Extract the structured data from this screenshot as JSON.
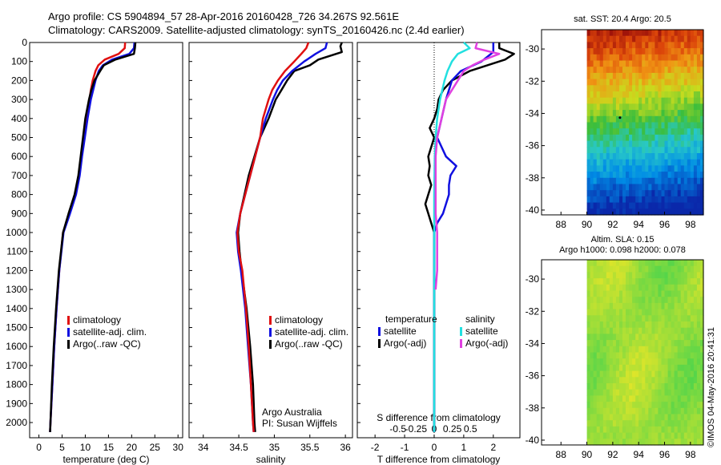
{
  "header": {
    "line1": "Argo profile: CS 5904894_57 28-Apr-2016 20160428_726 34.267S 92.561E",
    "line2": "Climatology: CARS2009. Satellite-adjusted climatology: synTS_20160426.nc (2.4d earlier)"
  },
  "colors": {
    "climatology": "#e01010",
    "satellite": "#1010e0",
    "argo": "#000000",
    "salinity_satellite": "#22e0e0",
    "salinity_argo": "#e040e0"
  },
  "chart_data": [
    {
      "type": "line",
      "panel": "temperature",
      "xlabel": "temperature (deg C)",
      "ylabel": "",
      "xlim": [
        -2,
        31
      ],
      "ylim": [
        2080,
        0
      ],
      "xticks": [
        "0",
        "5",
        "10",
        "15",
        "20",
        "25",
        "30"
      ],
      "yticks": [
        "0",
        "100",
        "200",
        "300",
        "400",
        "500",
        "600",
        "700",
        "800",
        "900",
        "1000",
        "1100",
        "1200",
        "1300",
        "1400",
        "1500",
        "1600",
        "1700",
        "1800",
        "1900",
        "2000"
      ],
      "legend": [
        "climatology",
        "satellite-adj. clim.",
        "Argo(..raw -QC)"
      ],
      "series": [
        {
          "name": "climatology",
          "depth": [
            0,
            30,
            60,
            90,
            120,
            150,
            200,
            250,
            300,
            400,
            500,
            600,
            700,
            800,
            900,
            1000,
            1200,
            1400,
            1600,
            1800,
            2000,
            2050
          ],
          "values": [
            18.6,
            18.5,
            17.2,
            14.2,
            12.8,
            12.2,
            11.6,
            11.2,
            10.9,
            10.3,
            9.7,
            9.2,
            8.7,
            7.9,
            6.6,
            5.2,
            4.4,
            3.8,
            3.3,
            2.9,
            2.5,
            2.4
          ]
        },
        {
          "name": "satellite-adj. clim.",
          "depth": [
            0,
            30,
            60,
            90,
            120,
            150,
            200,
            250,
            300,
            400,
            500,
            600,
            700,
            800,
            900,
            1000,
            1200,
            1400,
            1600,
            1800,
            2000,
            2050
          ],
          "values": [
            20.6,
            20.5,
            19.5,
            15.8,
            13.8,
            12.9,
            12.2,
            11.7,
            11.2,
            10.5,
            9.9,
            9.3,
            8.8,
            8.0,
            6.7,
            5.3,
            4.4,
            3.8,
            3.3,
            2.9,
            2.5,
            2.4
          ]
        },
        {
          "name": "Argo(..raw -QC)",
          "depth": [
            0,
            30,
            60,
            90,
            120,
            150,
            200,
            250,
            300,
            400,
            500,
            600,
            700,
            800,
            900,
            1000,
            1200,
            1400,
            1600,
            1800,
            2000,
            2050
          ],
          "values": [
            20.8,
            20.7,
            20.5,
            16.5,
            14.0,
            13.2,
            12.0,
            11.3,
            10.8,
            10.0,
            9.5,
            9.0,
            8.5,
            7.7,
            6.4,
            5.2,
            4.3,
            3.7,
            3.2,
            2.8,
            2.5,
            2.4
          ]
        }
      ]
    },
    {
      "type": "line",
      "panel": "salinity",
      "xlabel": "salinity",
      "ylabel": "",
      "xlim": [
        33.8,
        36.1
      ],
      "ylim": [
        2080,
        0
      ],
      "xticks": [
        "34",
        "34.5",
        "35",
        "35.5",
        "36"
      ],
      "legend": [
        "climatology",
        "satellite-adj. clim.",
        "Argo(..raw -QC)"
      ],
      "annotation": [
        "Argo Australia",
        "PI: Susan Wijffels"
      ],
      "series": [
        {
          "name": "climatology",
          "depth": [
            0,
            30,
            60,
            100,
            150,
            200,
            250,
            300,
            400,
            500,
            600,
            700,
            800,
            900,
            1000,
            1100,
            1200,
            1400,
            1600,
            1800,
            2000,
            2050
          ],
          "values": [
            35.48,
            35.45,
            35.38,
            35.28,
            35.15,
            35.05,
            34.97,
            34.92,
            34.84,
            34.8,
            34.73,
            34.66,
            34.59,
            34.52,
            34.48,
            34.5,
            34.55,
            34.6,
            34.64,
            34.67,
            34.7,
            34.71
          ]
        },
        {
          "name": "satellite-adj. clim.",
          "depth": [
            0,
            30,
            60,
            100,
            150,
            200,
            250,
            300,
            400,
            500,
            600,
            700,
            800,
            900,
            1000,
            1100,
            1200,
            1400,
            1600,
            1800,
            2000,
            2050
          ],
          "values": [
            35.74,
            35.72,
            35.58,
            35.42,
            35.25,
            35.12,
            35.04,
            34.98,
            34.88,
            34.8,
            34.73,
            34.66,
            34.59,
            34.52,
            34.47,
            34.49,
            34.53,
            34.59,
            34.63,
            34.67,
            34.7,
            34.71
          ]
        },
        {
          "name": "Argo(..raw -QC)",
          "depth": [
            0,
            20,
            50,
            90,
            120,
            150,
            200,
            250,
            300,
            400,
            500,
            600,
            700,
            800,
            900,
            1000,
            1100,
            1200,
            1400,
            1600,
            1800,
            2000,
            2050
          ],
          "values": [
            35.95,
            35.93,
            35.95,
            35.62,
            35.5,
            35.28,
            35.18,
            35.1,
            35.02,
            34.92,
            34.8,
            34.72,
            34.64,
            34.58,
            34.52,
            34.49,
            34.51,
            34.54,
            34.61,
            34.66,
            34.7,
            34.72,
            34.73
          ]
        }
      ]
    },
    {
      "type": "line",
      "panel": "difference",
      "xlabel": "T difference from climatology",
      "xlabel_top": "S difference from climatology",
      "xlim": [
        -2.6,
        2.9
      ],
      "ylim": [
        2080,
        0
      ],
      "xticks": [
        "-2",
        "-1",
        "0",
        "1",
        "2"
      ],
      "xticks_salinity": [
        "-0.5",
        "-0.25",
        "0",
        "0.25",
        "0.5"
      ],
      "legend_temperature_title": "temperature",
      "legend_salinity_title": "salinity",
      "legend_temperature": [
        "satellite",
        "Argo(-adj)"
      ],
      "legend_salinity": [
        "satellite",
        "Argo(-adj)"
      ],
      "series": [
        {
          "name": "temperature satellite",
          "depth": [
            0,
            50,
            100,
            150,
            200,
            300,
            400,
            500,
            600,
            650,
            700,
            750,
            800,
            900,
            950,
            1000,
            1100,
            1200,
            1500,
            1800,
            2050
          ],
          "values": [
            2.0,
            2.0,
            1.6,
            0.9,
            0.6,
            0.4,
            0.25,
            0.1,
            0.4,
            0.75,
            0.55,
            0.5,
            0.5,
            0.3,
            0.1,
            0.0,
            0.0,
            0.0,
            0.0,
            0.0,
            0.0
          ]
        },
        {
          "name": "temperature Argo(-adj)",
          "depth": [
            0,
            30,
            60,
            90,
            120,
            150,
            200,
            250,
            300,
            350,
            400,
            450,
            500,
            550,
            600,
            650,
            700,
            750,
            800,
            850,
            900,
            950,
            1000,
            1100,
            1200,
            1500,
            1800,
            2050
          ],
          "values": [
            2.2,
            2.2,
            2.7,
            2.4,
            1.8,
            1.2,
            0.6,
            0.3,
            0.15,
            0.1,
            0.0,
            -0.15,
            0.0,
            -0.1,
            -0.2,
            -0.15,
            -0.2,
            -0.1,
            -0.2,
            -0.3,
            -0.2,
            -0.1,
            0.0,
            0.0,
            0.0,
            0.0,
            0.0,
            0.0
          ]
        },
        {
          "name": "salinity satellite",
          "depth": [
            0,
            30,
            60,
            100,
            150,
            200,
            300,
            400,
            500,
            600,
            800,
            1000,
            1200,
            1500,
            1800,
            2050
          ],
          "values": [
            1.0,
            1.2,
            0.8,
            0.6,
            0.45,
            0.35,
            0.2,
            0.1,
            0.05,
            0.02,
            0.0,
            0.0,
            0.0,
            0.0,
            0.0,
            0.0
          ]
        },
        {
          "name": "salinity Argo(-adj)",
          "depth": [
            0,
            30,
            60,
            90,
            120,
            150,
            200,
            250,
            300,
            400,
            500,
            600,
            700,
            800,
            900,
            1000,
            1100,
            1200,
            1300
          ],
          "values": [
            1.45,
            1.4,
            2.2,
            1.7,
            1.3,
            1.0,
            0.8,
            0.6,
            0.4,
            0.25,
            0.1,
            0.05,
            0.05,
            0.05,
            0.05,
            0.1,
            0.1,
            0.1,
            0.05
          ]
        }
      ]
    },
    {
      "type": "heatmap",
      "panel": "sst-map",
      "title": "sat. SST: 20.4 Argo: 20.5",
      "xticks": [
        "88",
        "90",
        "92",
        "94",
        "96",
        "98"
      ],
      "yticks": [
        "-30",
        "-32",
        "-34",
        "-36",
        "-38",
        "-40"
      ],
      "xlim": [
        86.5,
        99
      ],
      "ylim": [
        -40.3,
        -28.8
      ],
      "data_xlim": [
        90,
        99
      ],
      "argo_position": {
        "lon": 92.561,
        "lat": -34.267
      }
    },
    {
      "type": "heatmap",
      "panel": "sla-map",
      "title_line1": "Altim. SLA: 0.15",
      "title_line2": "Argo h1000: 0.098 h2000: 0.078",
      "xticks": [
        "88",
        "90",
        "92",
        "94",
        "96",
        "98"
      ],
      "yticks": [
        "-30",
        "-32",
        "-34",
        "-36",
        "-38",
        "-40"
      ],
      "xlim": [
        86.5,
        99
      ],
      "ylim": [
        -40.3,
        -28.8
      ],
      "data_xlim": [
        90,
        99
      ]
    }
  ],
  "stamp": "©IMOS 04-May-2016 20:41:31"
}
